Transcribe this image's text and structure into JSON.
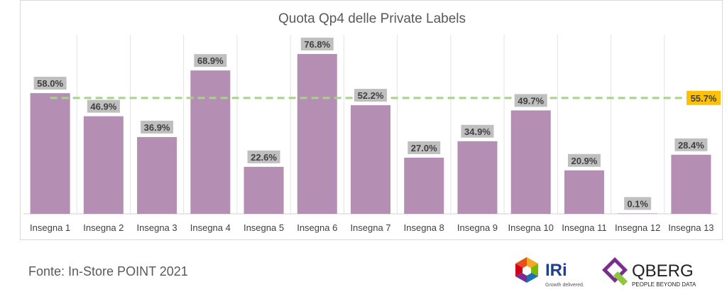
{
  "chart_data": {
    "type": "bar",
    "title": "Quota Qp4 delle Private Labels",
    "categories": [
      "Insegna 1",
      "Insegna 2",
      "Insegna 3",
      "Insegna 4",
      "Insegna 5",
      "Insegna 6",
      "Insegna 7",
      "Insegna 8",
      "Insegna 9",
      "Insegna 10",
      "Insegna 11",
      "Insegna 12",
      "Insegna 13"
    ],
    "values": [
      58.0,
      46.9,
      36.9,
      68.9,
      22.6,
      76.8,
      52.2,
      27.0,
      34.9,
      49.7,
      20.9,
      0.1,
      28.4
    ],
    "data_labels": [
      "58.0%",
      "46.9%",
      "36.9%",
      "68.9%",
      "22.6%",
      "76.8%",
      "52.2%",
      "27.0%",
      "34.9%",
      "49.7%",
      "20.9%",
      "0.1%",
      "28.4%"
    ],
    "reference_line": {
      "value": 55.7,
      "label": "55.7%",
      "style": "dashed",
      "color": "#a9d18e"
    },
    "ylim": [
      0,
      80
    ],
    "grid": "vertical separators",
    "bar_color": "#b48fb3",
    "label_bg_color": "#bfbfbf",
    "reference_label_bg_color": "#ffc000"
  },
  "footer": {
    "source": "Fonte: In-Store POINT 2021",
    "iri_logo": {
      "text": "IRi",
      "tagline": "Growth delivered."
    },
    "qberg_logo": {
      "text": "QBERG",
      "tagline": "PEOPLE BEYOND DATA"
    }
  }
}
